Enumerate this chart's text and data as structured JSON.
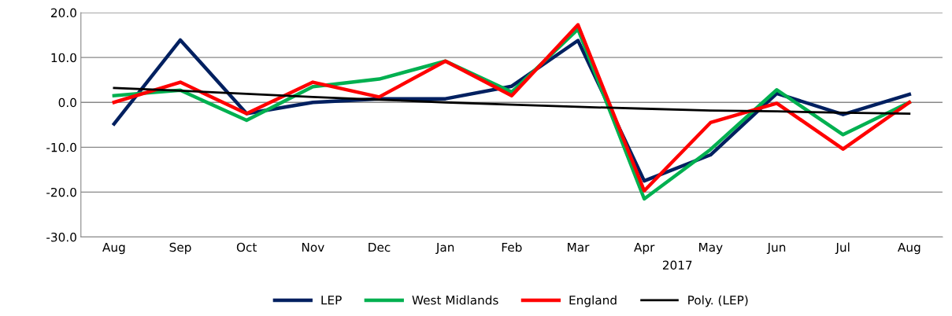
{
  "chart_data": {
    "type": "line",
    "categories": [
      "Aug",
      "Sep",
      "Oct",
      "Nov",
      "Dec",
      "Jan",
      "Feb",
      "Mar",
      "Apr",
      "May",
      "Jun",
      "Jul",
      "Aug"
    ],
    "series": [
      {
        "name": "LEP",
        "color": "#002060",
        "values": [
          -4.8,
          13.9,
          -2.5,
          0.0,
          0.8,
          0.8,
          3.6,
          13.8,
          -17.5,
          -11.7,
          2.0,
          -2.7,
          1.8
        ]
      },
      {
        "name": "West Midlands",
        "color": "#00b050",
        "values": [
          1.5,
          2.7,
          -4.0,
          3.5,
          5.2,
          9.2,
          2.3,
          16.3,
          -21.5,
          -10.5,
          2.8,
          -7.2,
          0.0
        ]
      },
      {
        "name": "England",
        "color": "#ff0000",
        "values": [
          0.0,
          4.5,
          -2.5,
          4.5,
          1.2,
          9.2,
          1.5,
          17.3,
          -19.7,
          -4.5,
          -0.2,
          -10.4,
          0.0
        ]
      },
      {
        "name": "Poly. (LEP)",
        "color": "#000000",
        "values": [
          3.2,
          2.6,
          1.9,
          1.2,
          0.6,
          0.0,
          -0.5,
          -1.0,
          -1.4,
          -1.8,
          -2.0,
          -2.3,
          -2.5
        ]
      }
    ],
    "ylim": [
      -30,
      20
    ],
    "yticks": [
      {
        "value": -30,
        "label": "-30.0"
      },
      {
        "value": -20,
        "label": "-20.0"
      },
      {
        "value": -10,
        "label": "-10.0"
      },
      {
        "value": 0,
        "label": "0.0"
      },
      {
        "value": 10,
        "label": "10.0"
      },
      {
        "value": 20,
        "label": "20.0"
      }
    ],
    "annotations": [
      "2017"
    ],
    "grid": "y",
    "legend": "bottom",
    "marker": "none",
    "line_style": "solid"
  }
}
